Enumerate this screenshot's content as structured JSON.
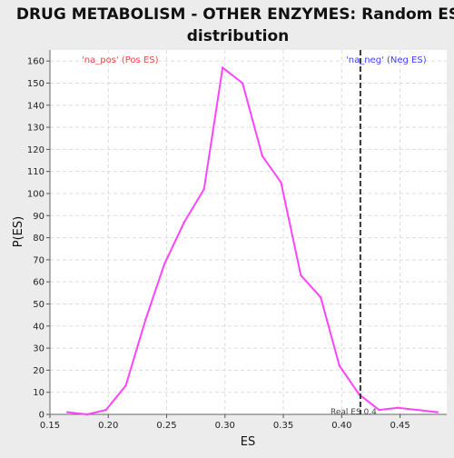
{
  "chart_data": {
    "type": "line",
    "title": "DRUG METABOLISM - OTHER ENZYMES: Random ES distribution",
    "title_lines": [
      "DRUG METABOLISM - OTHER ENZYMES: Random ES",
      "distribution"
    ],
    "xlabel": "ES",
    "ylabel": "P(ES)",
    "xlim": [
      0.15,
      0.49
    ],
    "ylim": [
      0,
      165
    ],
    "x_ticks": [
      0.15,
      0.2,
      0.25,
      0.3,
      0.35,
      0.4,
      0.45
    ],
    "x_tick_labels": [
      "0.15",
      "0.20",
      "0.25",
      "0.30",
      "0.35",
      "0.40",
      "0.45"
    ],
    "y_ticks": [
      0,
      10,
      20,
      30,
      40,
      50,
      60,
      70,
      80,
      90,
      100,
      110,
      120,
      130,
      140,
      150,
      160
    ],
    "y_tick_labels": [
      "0",
      "10",
      "20",
      "30",
      "40",
      "50",
      "60",
      "70",
      "80",
      "90",
      "100",
      "110",
      "120",
      "130",
      "140",
      "150",
      "160"
    ],
    "grid": true,
    "series": [
      {
        "color": "#ff44ff",
        "x": [
          0.165,
          0.182,
          0.198,
          0.215,
          0.232,
          0.248,
          0.265,
          0.282,
          0.298,
          0.315,
          0.332,
          0.348,
          0.365,
          0.382,
          0.398,
          0.415,
          0.432,
          0.448,
          0.465,
          0.482
        ],
        "y": [
          1,
          0,
          2,
          13,
          43,
          68,
          87,
          102,
          157,
          150,
          117,
          105,
          63,
          53,
          22,
          9,
          2,
          3,
          2,
          1
        ]
      }
    ],
    "reference_line": {
      "x": 0.416,
      "color": "#333333",
      "style": "dashed",
      "label": "Real ES 0.4"
    },
    "annotations": [
      {
        "text": "'na_pos' (Pos ES)",
        "position": "top-left",
        "color": "#ff4444"
      },
      {
        "text": "'na_neg' (Neg ES)",
        "position": "top-right",
        "color": "#4444ff"
      }
    ],
    "colors": {
      "plot_background": "#ffffff",
      "page_background": "#ececec",
      "grid": "#dddddd"
    }
  }
}
